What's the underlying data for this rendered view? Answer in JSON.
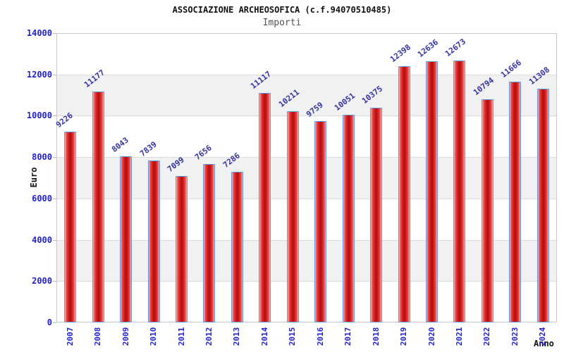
{
  "chart_data": {
    "type": "bar",
    "title": "ASSOCIAZIONE ARCHEOSOFICA (c.f.94070510485)",
    "subtitle": "Importi",
    "xlabel": "Anno",
    "ylabel": "Euro",
    "categories": [
      "2007",
      "2008",
      "2009",
      "2010",
      "2011",
      "2012",
      "2013",
      "2014",
      "2015",
      "2016",
      "2017",
      "2018",
      "2019",
      "2020",
      "2021",
      "2022",
      "2023",
      "2024"
    ],
    "values": [
      9226,
      11177,
      8043,
      7839,
      7099,
      7656,
      7286,
      11117,
      10211,
      9759,
      10051,
      10375,
      12398,
      12636,
      12673,
      10794,
      11666,
      11308
    ],
    "ylim": [
      0,
      14000
    ],
    "yticks": [
      0,
      2000,
      4000,
      6000,
      8000,
      10000,
      12000,
      14000
    ],
    "grid": "horizontal-bands-alternating",
    "legend": "none",
    "colors": {
      "bar_fill_dark": "#a81111",
      "bar_fill_main": "#e02222",
      "bar_fill_edge": "#f7c0c0",
      "bar_border": "#5b9ade",
      "value_label": "#3434a0",
      "axis_tick_label": "#2222cc",
      "band_gray": "#f1f1f1",
      "frame": "#c9c9c9",
      "title": "#111111",
      "subtitle": "#555555"
    }
  }
}
